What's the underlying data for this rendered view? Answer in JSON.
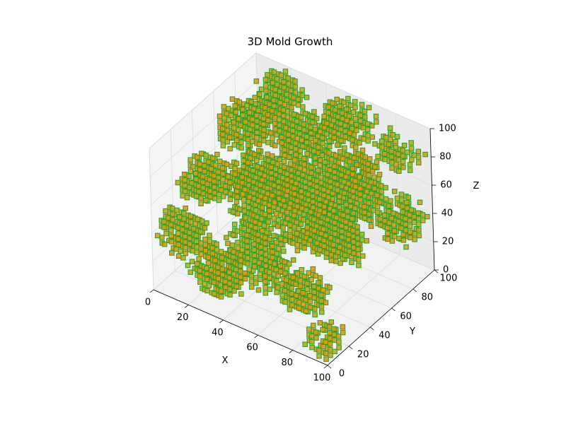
{
  "chart_data": {
    "type": "scatter",
    "title": "3D Mold Growth",
    "xlabel": "X",
    "ylabel": "Y",
    "zlabel": "Z",
    "xlim": [
      0,
      100
    ],
    "ylim": [
      0,
      100
    ],
    "zlim": [
      0,
      100
    ],
    "xticks": [
      "0",
      "20",
      "40",
      "60",
      "80",
      "100"
    ],
    "yticks": [
      "0",
      "20",
      "40",
      "60",
      "80",
      "100"
    ],
    "zticks": [
      "0",
      "20",
      "40",
      "60",
      "80",
      "100"
    ],
    "grid": true,
    "colors": {
      "voxel_face": "#d4a017",
      "voxel_edge": "#2ca02c",
      "pane": "#f2f2f2",
      "grid": "#e0e0e0"
    },
    "colonies": [
      {
        "x": 10,
        "y": 10,
        "z": 40,
        "r": 14
      },
      {
        "x": 8,
        "y": 35,
        "z": 60,
        "r": 15
      },
      {
        "x": 10,
        "y": 70,
        "z": 75,
        "r": 14
      },
      {
        "x": 20,
        "y": 90,
        "z": 88,
        "r": 13
      },
      {
        "x": 30,
        "y": 15,
        "z": 20,
        "r": 15
      },
      {
        "x": 32,
        "y": 50,
        "z": 50,
        "r": 17
      },
      {
        "x": 35,
        "y": 85,
        "z": 70,
        "r": 15
      },
      {
        "x": 45,
        "y": 30,
        "z": 85,
        "r": 15
      },
      {
        "x": 50,
        "y": 65,
        "z": 30,
        "r": 16
      },
      {
        "x": 55,
        "y": 10,
        "z": 55,
        "r": 14
      },
      {
        "x": 58,
        "y": 90,
        "z": 90,
        "r": 14
      },
      {
        "x": 62,
        "y": 45,
        "z": 75,
        "r": 16
      },
      {
        "x": 70,
        "y": 75,
        "z": 55,
        "r": 16
      },
      {
        "x": 75,
        "y": 20,
        "z": 25,
        "r": 13
      },
      {
        "x": 80,
        "y": 55,
        "z": 90,
        "r": 15
      },
      {
        "x": 88,
        "y": 30,
        "z": 65,
        "r": 14
      },
      {
        "x": 90,
        "y": 85,
        "z": 40,
        "r": 14
      },
      {
        "x": 95,
        "y": 8,
        "z": 10,
        "r": 11
      },
      {
        "x": 60,
        "y": 80,
        "z": 10,
        "r": 12
      },
      {
        "x": 25,
        "y": 65,
        "z": 95,
        "r": 12
      },
      {
        "x": 85,
        "y": 95,
        "z": 80,
        "r": 12
      },
      {
        "x": 45,
        "y": 40,
        "z": 8,
        "r": 12
      }
    ]
  }
}
